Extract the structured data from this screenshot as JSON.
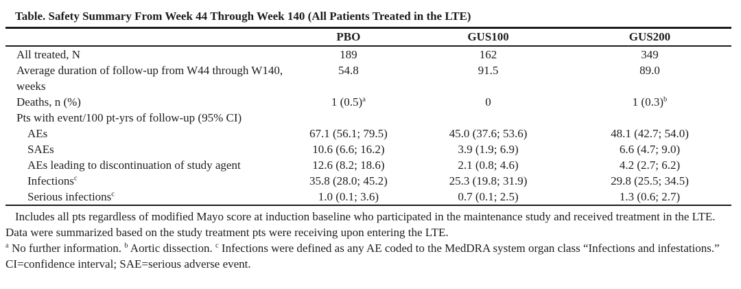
{
  "document": {
    "title": "Table. Safety Summary From Week 44 Through Week 140 (All Patients Treated in the LTE)",
    "columns": [
      {
        "label": ""
      },
      {
        "label": "PBO"
      },
      {
        "label": "GUS100"
      },
      {
        "label": "GUS200"
      }
    ],
    "rows": [
      {
        "label": "All treated, N",
        "indent": 0,
        "values": [
          "189",
          "162",
          "349"
        ]
      },
      {
        "label": "Average duration of follow-up from W44 through W140, weeks",
        "indent": 0,
        "values": [
          "54.8",
          "91.5",
          "89.0"
        ]
      },
      {
        "label": "Deaths, n (%)",
        "indent": 0,
        "values": [
          "1 (0.5)^a",
          "0",
          "1 (0.3)^b"
        ]
      },
      {
        "label": "Pts with event/100 pt-yrs of follow-up (95% CI)",
        "indent": 0,
        "values": [
          "",
          "",
          ""
        ]
      },
      {
        "label": "AEs",
        "indent": 1,
        "values": [
          "67.1 (56.1; 79.5)",
          "45.0 (37.6; 53.6)",
          "48.1 (42.7; 54.0)"
        ]
      },
      {
        "label": "SAEs",
        "indent": 1,
        "values": [
          "10.6 (6.6; 16.2)",
          "3.9 (1.9; 6.9)",
          "6.6 (4.7; 9.0)"
        ]
      },
      {
        "label": "AEs leading to discontinuation of study agent",
        "indent": 1,
        "values": [
          "12.6 (8.2; 18.6)",
          "2.1 (0.8; 4.6)",
          "4.2 (2.7; 6.2)"
        ]
      },
      {
        "label": "Infections^c",
        "indent": 1,
        "values": [
          "35.8 (28.0; 45.2)",
          "25.3 (19.8; 31.9)",
          "29.8 (25.5; 34.5)"
        ]
      },
      {
        "label": "Serious infections^c",
        "indent": 1,
        "values": [
          "1.0 (0.1; 3.6)",
          "0.7 (0.1; 2.5)",
          "1.3 (0.6; 2.7)"
        ]
      }
    ],
    "footnotes": [
      "Includes all pts regardless of modified Mayo score at induction baseline who participated in the maintenance study and received treatment in the LTE. Data were summarized based on the study treatment pts were receiving upon entering the LTE.",
      "^a No further information. ^b Aortic dissection. ^c Infections were defined as any AE coded to the MedDRA system organ class “Infections and infestations.”",
      "CI=confidence interval; SAE=serious adverse event."
    ],
    "colors": {
      "text": "#1c1c1c",
      "rule": "#1c1c1c",
      "background": "#ffffff"
    }
  }
}
